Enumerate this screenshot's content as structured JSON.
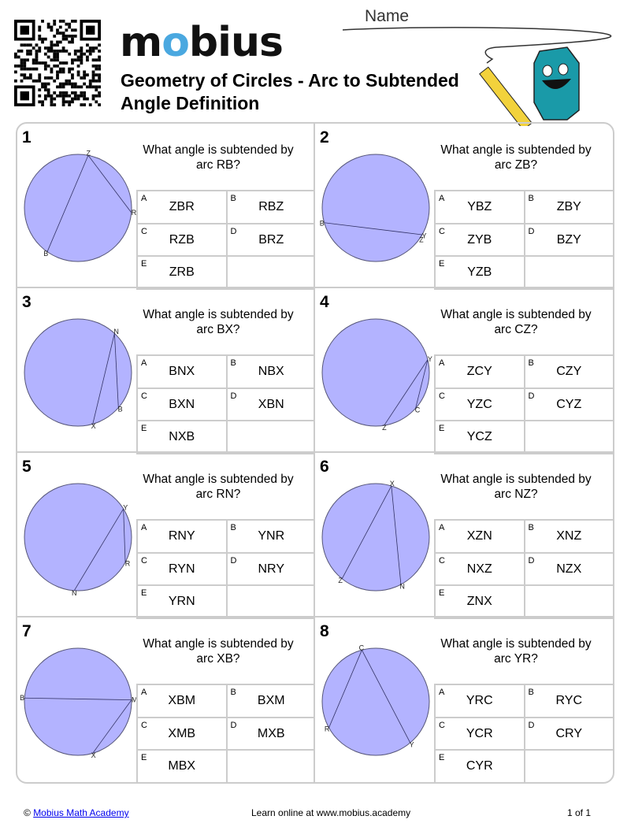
{
  "header": {
    "logo_text": "mobius",
    "title": "Geometry of Circles - Arc to Subtended Angle Definition",
    "name_label": "Name"
  },
  "colors": {
    "circle_fill": "#b3b3ff",
    "circle_stroke": "#555577",
    "border": "#cccccc",
    "logo_accent": "#4aa8e0",
    "mascot": "#1a9aa8"
  },
  "problems": [
    {
      "number": "1",
      "question": "What angle is subtended by arc RB?",
      "points": [
        "Z",
        "R",
        "B"
      ],
      "chords": [
        [
          "Z",
          "B"
        ],
        [
          "Z",
          "R"
        ]
      ],
      "options": [
        {
          "letter": "A",
          "text": "ZBR"
        },
        {
          "letter": "B",
          "text": "RBZ"
        },
        {
          "letter": "C",
          "text": "RZB"
        },
        {
          "letter": "D",
          "text": "BRZ"
        },
        {
          "letter": "E",
          "text": "ZRB"
        }
      ]
    },
    {
      "number": "2",
      "question": "What angle is subtended by arc ZB?",
      "points": [
        "B",
        "Y",
        "Z"
      ],
      "chords": [
        [
          "B",
          "Y"
        ],
        [
          "Y",
          "Z"
        ]
      ],
      "options": [
        {
          "letter": "A",
          "text": "YBZ"
        },
        {
          "letter": "B",
          "text": "ZBY"
        },
        {
          "letter": "C",
          "text": "ZYB"
        },
        {
          "letter": "D",
          "text": "BZY"
        },
        {
          "letter": "E",
          "text": "YZB"
        }
      ]
    },
    {
      "number": "3",
      "question": "What angle is subtended by arc BX?",
      "points": [
        "N",
        "B",
        "X"
      ],
      "chords": [
        [
          "N",
          "B"
        ],
        [
          "N",
          "X"
        ]
      ],
      "options": [
        {
          "letter": "A",
          "text": "BNX"
        },
        {
          "letter": "B",
          "text": "NBX"
        },
        {
          "letter": "C",
          "text": "BXN"
        },
        {
          "letter": "D",
          "text": "XBN"
        },
        {
          "letter": "E",
          "text": "NXB"
        }
      ]
    },
    {
      "number": "4",
      "question": "What angle is subtended by arc CZ?",
      "points": [
        "Y",
        "C",
        "Z"
      ],
      "chords": [
        [
          "Y",
          "Z"
        ],
        [
          "Y",
          "C"
        ]
      ],
      "options": [
        {
          "letter": "A",
          "text": "ZCY"
        },
        {
          "letter": "B",
          "text": "CZY"
        },
        {
          "letter": "C",
          "text": "YZC"
        },
        {
          "letter": "D",
          "text": "CYZ"
        },
        {
          "letter": "E",
          "text": "YCZ"
        }
      ]
    },
    {
      "number": "5",
      "question": "What angle is subtended by arc RN?",
      "points": [
        "Y",
        "R",
        "N"
      ],
      "chords": [
        [
          "Y",
          "R"
        ],
        [
          "Y",
          "N"
        ]
      ],
      "options": [
        {
          "letter": "A",
          "text": "RNY"
        },
        {
          "letter": "B",
          "text": "YNR"
        },
        {
          "letter": "C",
          "text": "RYN"
        },
        {
          "letter": "D",
          "text": "NRY"
        },
        {
          "letter": "E",
          "text": "YRN"
        }
      ]
    },
    {
      "number": "6",
      "question": "What angle is subtended by arc NZ?",
      "points": [
        "X",
        "Z",
        "N"
      ],
      "chords": [
        [
          "X",
          "Z"
        ],
        [
          "X",
          "N"
        ]
      ],
      "options": [
        {
          "letter": "A",
          "text": "XZN"
        },
        {
          "letter": "B",
          "text": "XNZ"
        },
        {
          "letter": "C",
          "text": "NXZ"
        },
        {
          "letter": "D",
          "text": "NZX"
        },
        {
          "letter": "E",
          "text": "ZNX"
        }
      ]
    },
    {
      "number": "7",
      "question": "What angle is subtended by arc XB?",
      "points": [
        "B",
        "M",
        "X"
      ],
      "chords": [
        [
          "B",
          "M"
        ],
        [
          "M",
          "X"
        ]
      ],
      "options": [
        {
          "letter": "A",
          "text": "XBM"
        },
        {
          "letter": "B",
          "text": "BXM"
        },
        {
          "letter": "C",
          "text": "XMB"
        },
        {
          "letter": "D",
          "text": "MXB"
        },
        {
          "letter": "E",
          "text": "MBX"
        }
      ]
    },
    {
      "number": "8",
      "question": "What angle is subtended by arc YR?",
      "points": [
        "C",
        "R",
        "Y"
      ],
      "chords": [
        [
          "C",
          "R"
        ],
        [
          "C",
          "Y"
        ]
      ],
      "options": [
        {
          "letter": "A",
          "text": "YRC"
        },
        {
          "letter": "B",
          "text": "RYC"
        },
        {
          "letter": "C",
          "text": "YCR"
        },
        {
          "letter": "D",
          "text": "CRY"
        },
        {
          "letter": "E",
          "text": "CYR"
        }
      ]
    }
  ],
  "footer": {
    "copyright": "©",
    "link": "Mobius Math Academy",
    "center": "Learn online at www.mobius.academy",
    "page": "1 of 1"
  }
}
